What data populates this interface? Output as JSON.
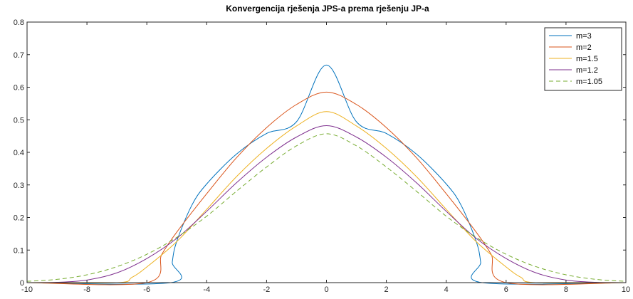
{
  "chart_data": {
    "type": "line",
    "title": "Konvergencija rješenja JPS-a prema rješenju JP-a",
    "xlabel": "",
    "ylabel": "",
    "xlim": [
      -10,
      10
    ],
    "ylim": [
      0,
      0.8
    ],
    "xticks": [
      -10,
      -8,
      -6,
      -4,
      -2,
      0,
      2,
      4,
      6,
      8,
      10
    ],
    "yticks": [
      0,
      0.1,
      0.2,
      0.3,
      0.4,
      0.5,
      0.6,
      0.7,
      0.8
    ],
    "xtick_labels": [
      "-10",
      "-8",
      "-6",
      "-4",
      "-2",
      "0",
      "2",
      "4",
      "6",
      "8",
      "10"
    ],
    "ytick_labels": [
      "0",
      "0.1",
      "0.2",
      "0.3",
      "0.4",
      "0.5",
      "0.6",
      "0.7",
      "0.8"
    ],
    "grid": false,
    "legend_position": "top-right",
    "series": [
      {
        "name": "m=3",
        "color": "#0072BD",
        "dash": "solid",
        "x": [
          -10,
          -5.2,
          -5.15,
          -5.0,
          -4.5,
          -4.0,
          -3.0,
          -2.0,
          -1.0,
          0,
          1.0,
          2.0,
          3.0,
          4.0,
          4.5,
          5.0,
          5.15,
          5.2,
          10
        ],
        "y": [
          0,
          0,
          0.063,
          0.127,
          0.237,
          0.303,
          0.395,
          0.458,
          0.494,
          0.668,
          0.494,
          0.458,
          0.395,
          0.303,
          0.237,
          0.127,
          0.063,
          0,
          0
        ]
      },
      {
        "name": "m=2",
        "color": "#D95319",
        "dash": "solid",
        "x": [
          -10,
          -6.0,
          -5.5,
          -5.0,
          -4.0,
          -3.0,
          -2.0,
          -1.0,
          0,
          1.0,
          2.0,
          3.0,
          4.0,
          5.0,
          5.5,
          6.0,
          10
        ],
        "y": [
          0,
          0,
          0.087,
          0.155,
          0.273,
          0.384,
          0.476,
          0.547,
          0.585,
          0.547,
          0.476,
          0.384,
          0.273,
          0.155,
          0.087,
          0,
          0
        ]
      },
      {
        "name": "m=1.5",
        "color": "#EDB120",
        "dash": "solid",
        "x": [
          -10,
          -7.0,
          -6.5,
          -6.0,
          -5.0,
          -4.0,
          -3.0,
          -2.0,
          -1.0,
          0,
          1.0,
          2.0,
          3.0,
          4.0,
          5.0,
          6.0,
          6.5,
          7.0,
          10
        ],
        "y": [
          0,
          0,
          0.016,
          0.048,
          0.126,
          0.225,
          0.326,
          0.412,
          0.481,
          0.525,
          0.481,
          0.412,
          0.326,
          0.225,
          0.126,
          0.048,
          0.016,
          0,
          0
        ]
      },
      {
        "name": "m=1.2",
        "color": "#7E2F8E",
        "dash": "solid",
        "x": [
          -10,
          -9.0,
          -8.0,
          -7.0,
          -6.0,
          -5.0,
          -4.0,
          -3.0,
          -2.0,
          -1.0,
          0,
          1.0,
          2.0,
          3.0,
          4.0,
          5.0,
          6.0,
          7.0,
          8.0,
          9.0,
          10
        ],
        "y": [
          0,
          0.001,
          0.008,
          0.03,
          0.074,
          0.136,
          0.219,
          0.307,
          0.385,
          0.447,
          0.482,
          0.447,
          0.385,
          0.307,
          0.219,
          0.136,
          0.074,
          0.03,
          0.008,
          0.001,
          0
        ]
      },
      {
        "name": "m=1.05",
        "color": "#77AC30",
        "dash": "dashed",
        "x": [
          -10,
          -9.0,
          -8.0,
          -7.0,
          -6.0,
          -5.0,
          -4.0,
          -3.0,
          -2.0,
          -1.0,
          0,
          1.0,
          2.0,
          3.0,
          4.0,
          5.0,
          6.0,
          7.0,
          8.0,
          9.0,
          10
        ],
        "y": [
          0.004,
          0.01,
          0.024,
          0.049,
          0.087,
          0.139,
          0.204,
          0.281,
          0.355,
          0.42,
          0.457,
          0.42,
          0.355,
          0.281,
          0.204,
          0.139,
          0.087,
          0.049,
          0.024,
          0.01,
          0.004
        ]
      }
    ]
  }
}
